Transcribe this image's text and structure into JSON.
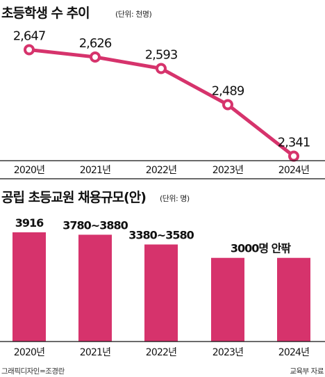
{
  "chart_data": [
    {
      "type": "line",
      "title": "초등학생 수 추이",
      "unit": "(단위: 천명)",
      "categories": [
        "2020년",
        "2021년",
        "2022년",
        "2023년",
        "2024년"
      ],
      "values": [
        2647,
        2626,
        2593,
        2489,
        2341
      ],
      "value_labels": [
        "2,647",
        "2,626",
        "2,593",
        "2,489",
        "2,341"
      ],
      "ylim": [
        2300,
        2700
      ],
      "grid": false,
      "color": "#d6336c"
    },
    {
      "type": "bar",
      "title": "공립 초등교원 채용규모(안)",
      "unit": "(단위: 명)",
      "categories": [
        "2020년",
        "2021년",
        "2022년",
        "2023년",
        "2024년"
      ],
      "values": [
        3916,
        3830,
        3480,
        3000,
        3000
      ],
      "value_labels": [
        "3916",
        "3780~3880",
        "3380~3580",
        "3000명 안팎",
        ""
      ],
      "ylim": [
        0,
        3916
      ],
      "grid": false,
      "color": "#d6336c"
    }
  ],
  "footer": {
    "credit_left": "그래픽디자인=조경란",
    "credit_right": "교육부 자료"
  }
}
